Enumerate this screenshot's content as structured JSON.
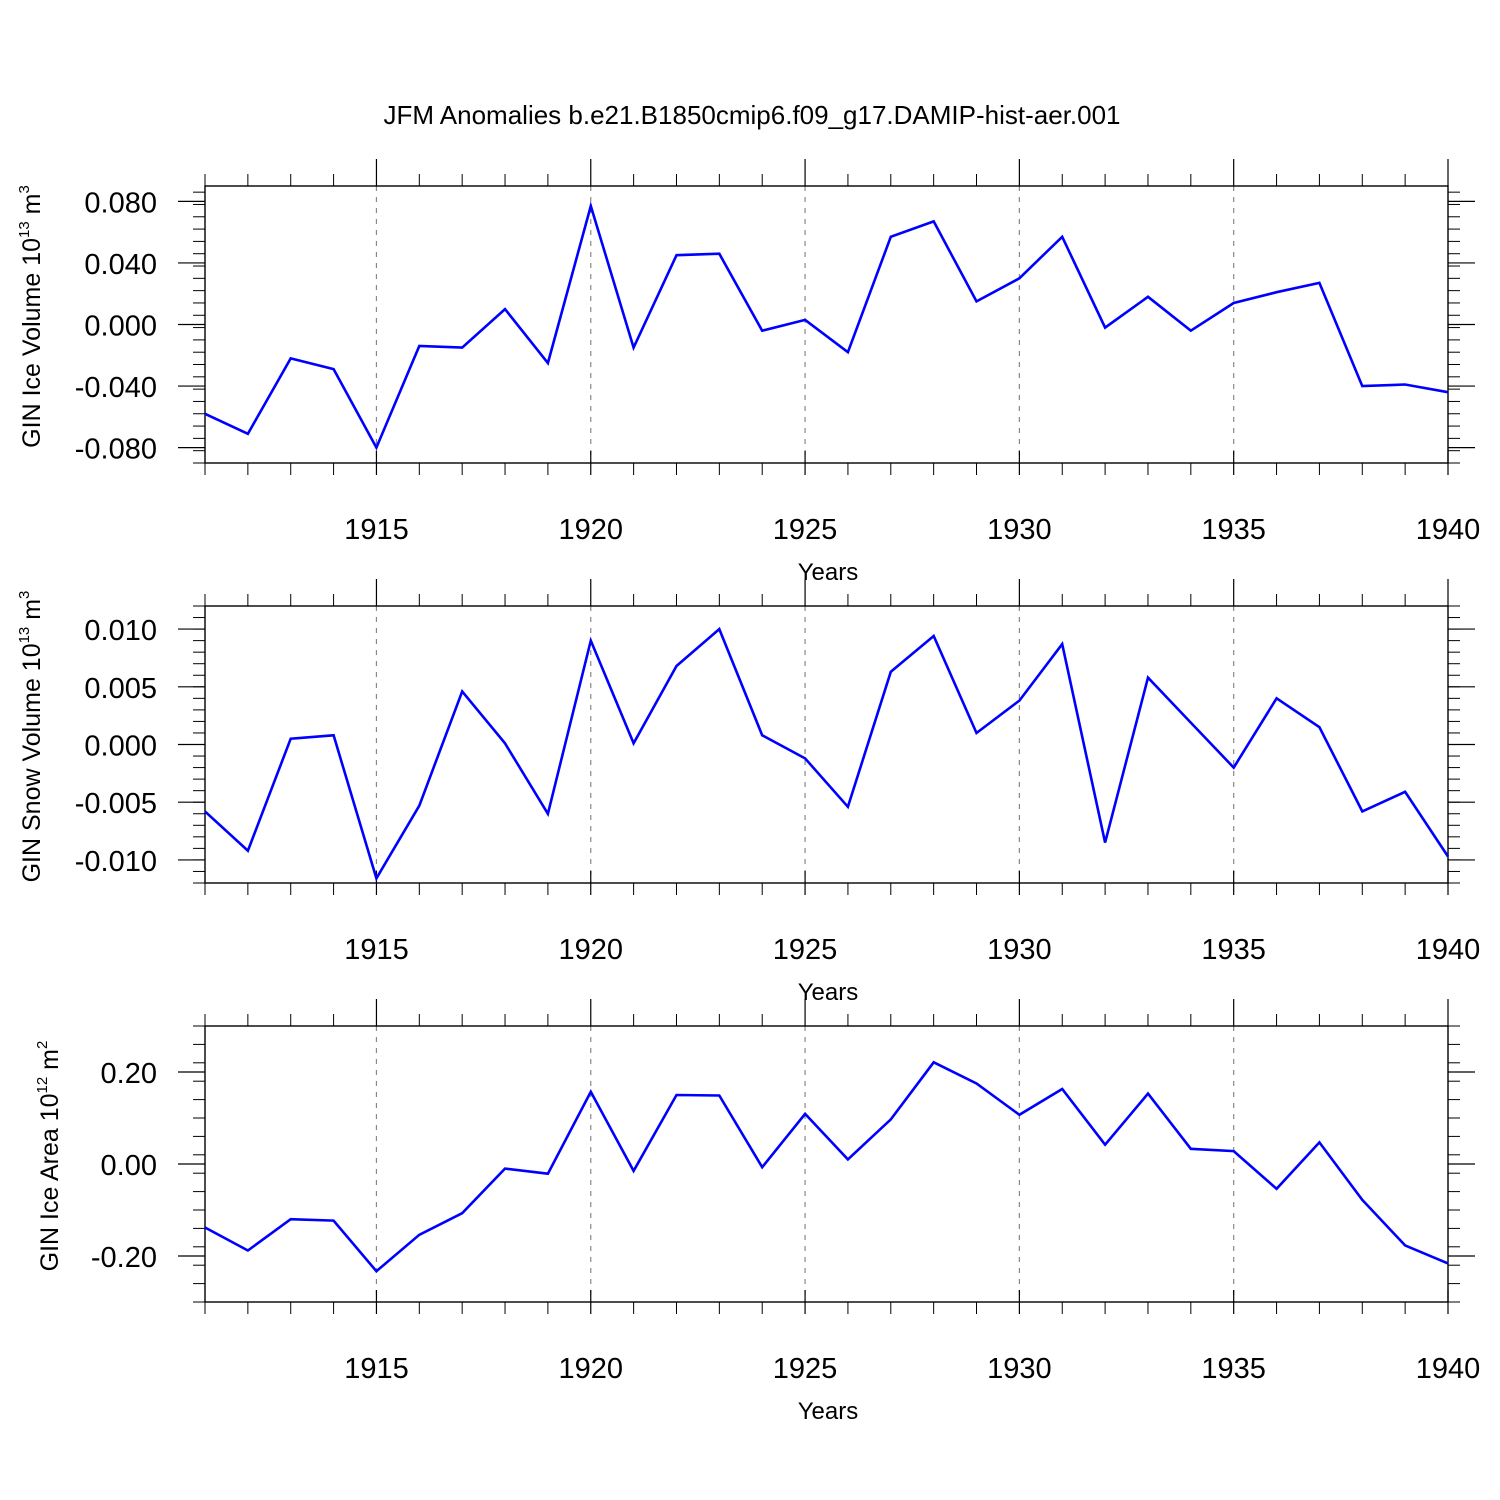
{
  "title": "JFM Anomalies b.e21.B1850cmip6.f09_g17.DAMIP-hist-aer.001",
  "chart_data": [
    {
      "type": "line",
      "ylabel": {
        "text": "GIN Ice Volume 10",
        "exp": "13",
        "unit": " m",
        "unit_exp": "3"
      },
      "xlabel": "Years",
      "xlim": [
        1911,
        1940
      ],
      "ylim": [
        -0.09,
        0.09
      ],
      "yticks": [
        -0.08,
        -0.04,
        0.0,
        0.04,
        0.08
      ],
      "ytick_labels": [
        "-0.080",
        "-0.040",
        "0.000",
        "0.040",
        "0.080"
      ],
      "xticks": [
        1915,
        1920,
        1925,
        1930,
        1935,
        1940
      ],
      "xtick_labels": [
        "1915",
        "1920",
        "1925",
        "1930",
        "1935",
        "1940"
      ],
      "grid": "vertical dashed at major x ticks",
      "line_color": "#0000ff",
      "x": [
        1911,
        1912,
        1913,
        1914,
        1915,
        1916,
        1917,
        1918,
        1919,
        1920,
        1921,
        1922,
        1923,
        1924,
        1925,
        1926,
        1927,
        1928,
        1929,
        1930,
        1931,
        1932,
        1933,
        1934,
        1935,
        1936,
        1937,
        1938,
        1939,
        1940
      ],
      "values": [
        -0.058,
        -0.071,
        -0.022,
        -0.029,
        -0.08,
        -0.014,
        -0.015,
        0.01,
        -0.025,
        0.077,
        -0.015,
        0.045,
        0.046,
        -0.004,
        0.003,
        -0.018,
        0.057,
        0.067,
        0.015,
        0.03,
        0.057,
        -0.002,
        0.018,
        -0.004,
        0.014,
        0.021,
        0.027,
        -0.04,
        -0.039,
        -0.044
      ]
    },
    {
      "type": "line",
      "ylabel": {
        "text": "GIN Snow Volume 10",
        "exp": "13",
        "unit": " m",
        "unit_exp": "3"
      },
      "xlabel": "Years",
      "xlim": [
        1911,
        1940
      ],
      "ylim": [
        -0.012,
        0.012
      ],
      "yticks": [
        -0.01,
        -0.005,
        0.0,
        0.005,
        0.01
      ],
      "ytick_labels": [
        "-0.010",
        "-0.005",
        "0.000",
        "0.005",
        "0.010"
      ],
      "xticks": [
        1915,
        1920,
        1925,
        1930,
        1935,
        1940
      ],
      "xtick_labels": [
        "1915",
        "1920",
        "1925",
        "1930",
        "1935",
        "1940"
      ],
      "grid": "vertical dashed at major x ticks",
      "line_color": "#0000ff",
      "x": [
        1911,
        1912,
        1913,
        1914,
        1915,
        1916,
        1917,
        1918,
        1919,
        1920,
        1921,
        1922,
        1923,
        1924,
        1925,
        1926,
        1927,
        1928,
        1929,
        1930,
        1931,
        1932,
        1933,
        1934,
        1935,
        1936,
        1937,
        1938,
        1939,
        1940
      ],
      "values": [
        -0.0058,
        -0.0092,
        0.0005,
        0.0008,
        -0.0116,
        -0.0053,
        0.0046,
        0.0001,
        -0.006,
        0.009,
        0.0001,
        0.0068,
        0.01,
        0.0008,
        -0.0012,
        -0.0054,
        0.0063,
        0.0094,
        0.001,
        0.0038,
        0.0087,
        -0.0085,
        0.0058,
        0.0019,
        -0.002,
        0.004,
        0.0015,
        -0.0058,
        -0.0041,
        -0.0097
      ]
    },
    {
      "type": "line",
      "ylabel": {
        "text": "GIN Ice Area 10",
        "exp": "12",
        "unit": " m",
        "unit_exp": "2"
      },
      "xlabel": "Years",
      "xlim": [
        1911,
        1940
      ],
      "ylim": [
        -0.3,
        0.3
      ],
      "yticks": [
        -0.2,
        0.0,
        0.2
      ],
      "ytick_labels": [
        "-0.20",
        "0.00",
        "0.20"
      ],
      "xticks": [
        1915,
        1920,
        1925,
        1930,
        1935,
        1940
      ],
      "xtick_labels": [
        "1915",
        "1920",
        "1925",
        "1930",
        "1935",
        "1940"
      ],
      "grid": "vertical dashed at major x ticks",
      "line_color": "#0000ff",
      "x": [
        1911,
        1912,
        1913,
        1914,
        1915,
        1916,
        1917,
        1918,
        1919,
        1920,
        1921,
        1922,
        1923,
        1924,
        1925,
        1926,
        1927,
        1928,
        1929,
        1930,
        1931,
        1932,
        1933,
        1934,
        1935,
        1936,
        1937,
        1938,
        1939,
        1940
      ],
      "values": [
        -0.138,
        -0.188,
        -0.12,
        -0.123,
        -0.233,
        -0.154,
        -0.107,
        -0.01,
        -0.021,
        0.157,
        -0.015,
        0.15,
        0.149,
        -0.007,
        0.109,
        0.01,
        0.097,
        0.221,
        0.175,
        0.107,
        0.163,
        0.042,
        0.153,
        0.033,
        0.028,
        -0.054,
        0.047,
        -0.078,
        -0.177,
        -0.216
      ]
    }
  ]
}
